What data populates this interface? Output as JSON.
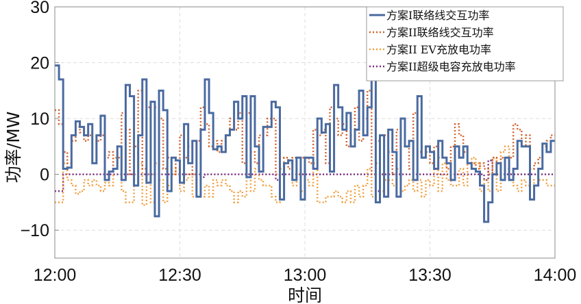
{
  "chart_data": {
    "type": "line",
    "step": true,
    "xlabel": "时间",
    "ylabel": "功率/MW",
    "xlim_minutes": [
      0,
      120
    ],
    "xticks": [
      {
        "min": 0,
        "label": "12:00"
      },
      {
        "min": 30,
        "label": "12:30"
      },
      {
        "min": 60,
        "label": "13:00"
      },
      {
        "min": 90,
        "label": "13:30"
      },
      {
        "min": 120,
        "label": "14:00"
      }
    ],
    "ylim": [
      -15,
      30
    ],
    "yticks": [
      {
        "v": -10,
        "label": "−10"
      },
      {
        "v": 0,
        "label": "0"
      },
      {
        "v": 10,
        "label": "10"
      },
      {
        "v": 20,
        "label": "20"
      },
      {
        "v": 30,
        "label": "30"
      }
    ],
    "grid": true,
    "legend_position": "top-right",
    "x_step_minutes": 1,
    "series": [
      {
        "name": "方案I联络线交互功率",
        "color": "#4a6aa0",
        "style": "solid",
        "values": [
          19.5,
          17,
          1,
          1.2,
          7,
          9.5,
          8.5,
          7,
          9,
          2,
          7,
          10.5,
          -1,
          0.5,
          1,
          5,
          -1,
          16,
          14,
          -2,
          7,
          17,
          -1.5,
          13,
          -7.5,
          15,
          11.5,
          -3,
          3,
          2.5,
          -1.5,
          9,
          2,
          6,
          -4,
          8,
          17,
          11,
          4.5,
          5,
          4,
          7,
          8,
          13,
          10,
          14,
          -0.5,
          14,
          5,
          0.5,
          8.5,
          8.5,
          13,
          12,
          -4.5,
          2,
          2.5,
          -1,
          3,
          -4.5,
          3,
          3,
          1,
          10,
          7.5,
          9,
          0.5,
          16,
          12,
          8,
          11,
          5,
          8,
          15,
          7,
          12,
          20,
          -5,
          7,
          -4,
          8,
          4,
          -4,
          10,
          5,
          6,
          -1,
          14,
          3,
          5,
          4,
          1,
          6,
          3,
          2,
          -1,
          5,
          3,
          5,
          2,
          1,
          0.5,
          -2,
          -8.5,
          -5,
          0,
          2,
          -1,
          3,
          -1,
          1,
          6,
          5,
          5,
          -4.5,
          -2,
          1,
          5.5,
          4,
          6
        ]
      },
      {
        "name": "方案II联络线交互功率",
        "color": "#d0602a",
        "style": "dotted",
        "values": [
          11.5,
          9,
          4,
          2,
          6,
          8.5,
          7.5,
          6,
          7,
          2,
          6,
          7,
          3,
          4,
          1,
          3,
          11,
          8,
          0,
          5,
          15,
          1,
          12,
          0,
          12,
          10,
          1,
          3,
          3,
          0,
          7,
          3,
          5,
          0,
          6,
          12,
          9,
          5,
          6,
          4,
          6,
          7,
          10,
          8,
          11,
          2,
          11,
          4,
          2,
          7,
          7,
          10,
          10,
          0,
          3,
          3,
          1,
          3,
          0,
          3,
          3,
          2,
          8,
          7,
          8,
          2,
          12,
          10,
          7,
          9,
          5,
          7,
          12,
          6,
          10,
          15,
          0,
          6,
          0,
          7,
          4,
          0,
          8,
          5,
          5,
          1,
          11,
          4,
          5,
          4,
          2,
          5,
          3,
          3,
          1,
          5,
          9,
          7,
          4,
          2,
          2,
          1,
          2,
          1,
          0,
          3,
          2,
          3,
          1,
          3,
          9,
          8,
          5,
          7,
          1,
          2,
          3,
          5,
          6,
          7
        ]
      },
      {
        "name": "方案II EV充放电功率",
        "color": "#f0a040",
        "style": "dotted",
        "values": [
          -5,
          -5,
          2,
          -1,
          -2,
          -3.5,
          -3,
          -1,
          -2,
          -1,
          -2,
          -3,
          -1.5,
          -2,
          3,
          3,
          -3,
          -5,
          -5,
          -1,
          2,
          -5.5,
          0,
          -5,
          2,
          -1,
          -5,
          -2,
          0,
          1,
          -3,
          -1,
          0,
          -4,
          -1,
          -4,
          -2,
          -4,
          -1,
          -2,
          -1,
          -2,
          -3,
          -5,
          -3,
          -4,
          0,
          -3,
          1,
          -1,
          -2,
          -2,
          -4,
          -5,
          1,
          3,
          2,
          -2,
          1,
          -3,
          -1,
          -2,
          2,
          -5,
          -5,
          -4,
          -4,
          -3,
          -4,
          -5,
          -3,
          -5,
          -2,
          -4,
          -2,
          1,
          -4,
          2,
          -3,
          -1,
          -1,
          -2,
          1,
          -3,
          -2,
          -1,
          -3,
          -1,
          -4,
          -1,
          -2,
          1,
          -3,
          2,
          -1,
          -2,
          -2,
          1,
          -2,
          2,
          3,
          2,
          -3,
          -1,
          -3,
          3,
          -3,
          4,
          5,
          -1,
          -2,
          -3,
          -1,
          -2,
          -1,
          -2,
          -1,
          -1,
          -2,
          -2
        ]
      },
      {
        "name": "方案II超级电容充放电功率",
        "color": "#7a2a80",
        "style": "dotted",
        "values": [
          -3,
          -3,
          0,
          0,
          0,
          0,
          0,
          0,
          0,
          0,
          0,
          0,
          0,
          0,
          0,
          0,
          0,
          0,
          0,
          0,
          0,
          0,
          0,
          0,
          0,
          0,
          0,
          0,
          0,
          0,
          0,
          0,
          0,
          0,
          0,
          -0.5,
          0,
          0,
          0,
          0,
          0,
          0,
          0,
          0,
          0,
          0,
          0,
          0,
          0,
          0,
          0,
          0,
          0,
          -1,
          0,
          0,
          0,
          0,
          0,
          0,
          0,
          0,
          0,
          0,
          0,
          0,
          0,
          0,
          0,
          0,
          0,
          0,
          0,
          0,
          0,
          0,
          0,
          -3,
          0,
          0,
          0,
          0,
          0,
          0,
          0,
          0,
          0,
          0,
          0,
          0,
          0,
          0,
          0,
          0,
          0,
          0,
          0,
          0,
          0,
          0,
          0,
          0,
          0,
          -1,
          2.5,
          0,
          0,
          0,
          0,
          0,
          0,
          0,
          0,
          0,
          0,
          0,
          0,
          0,
          0,
          0
        ]
      }
    ]
  }
}
